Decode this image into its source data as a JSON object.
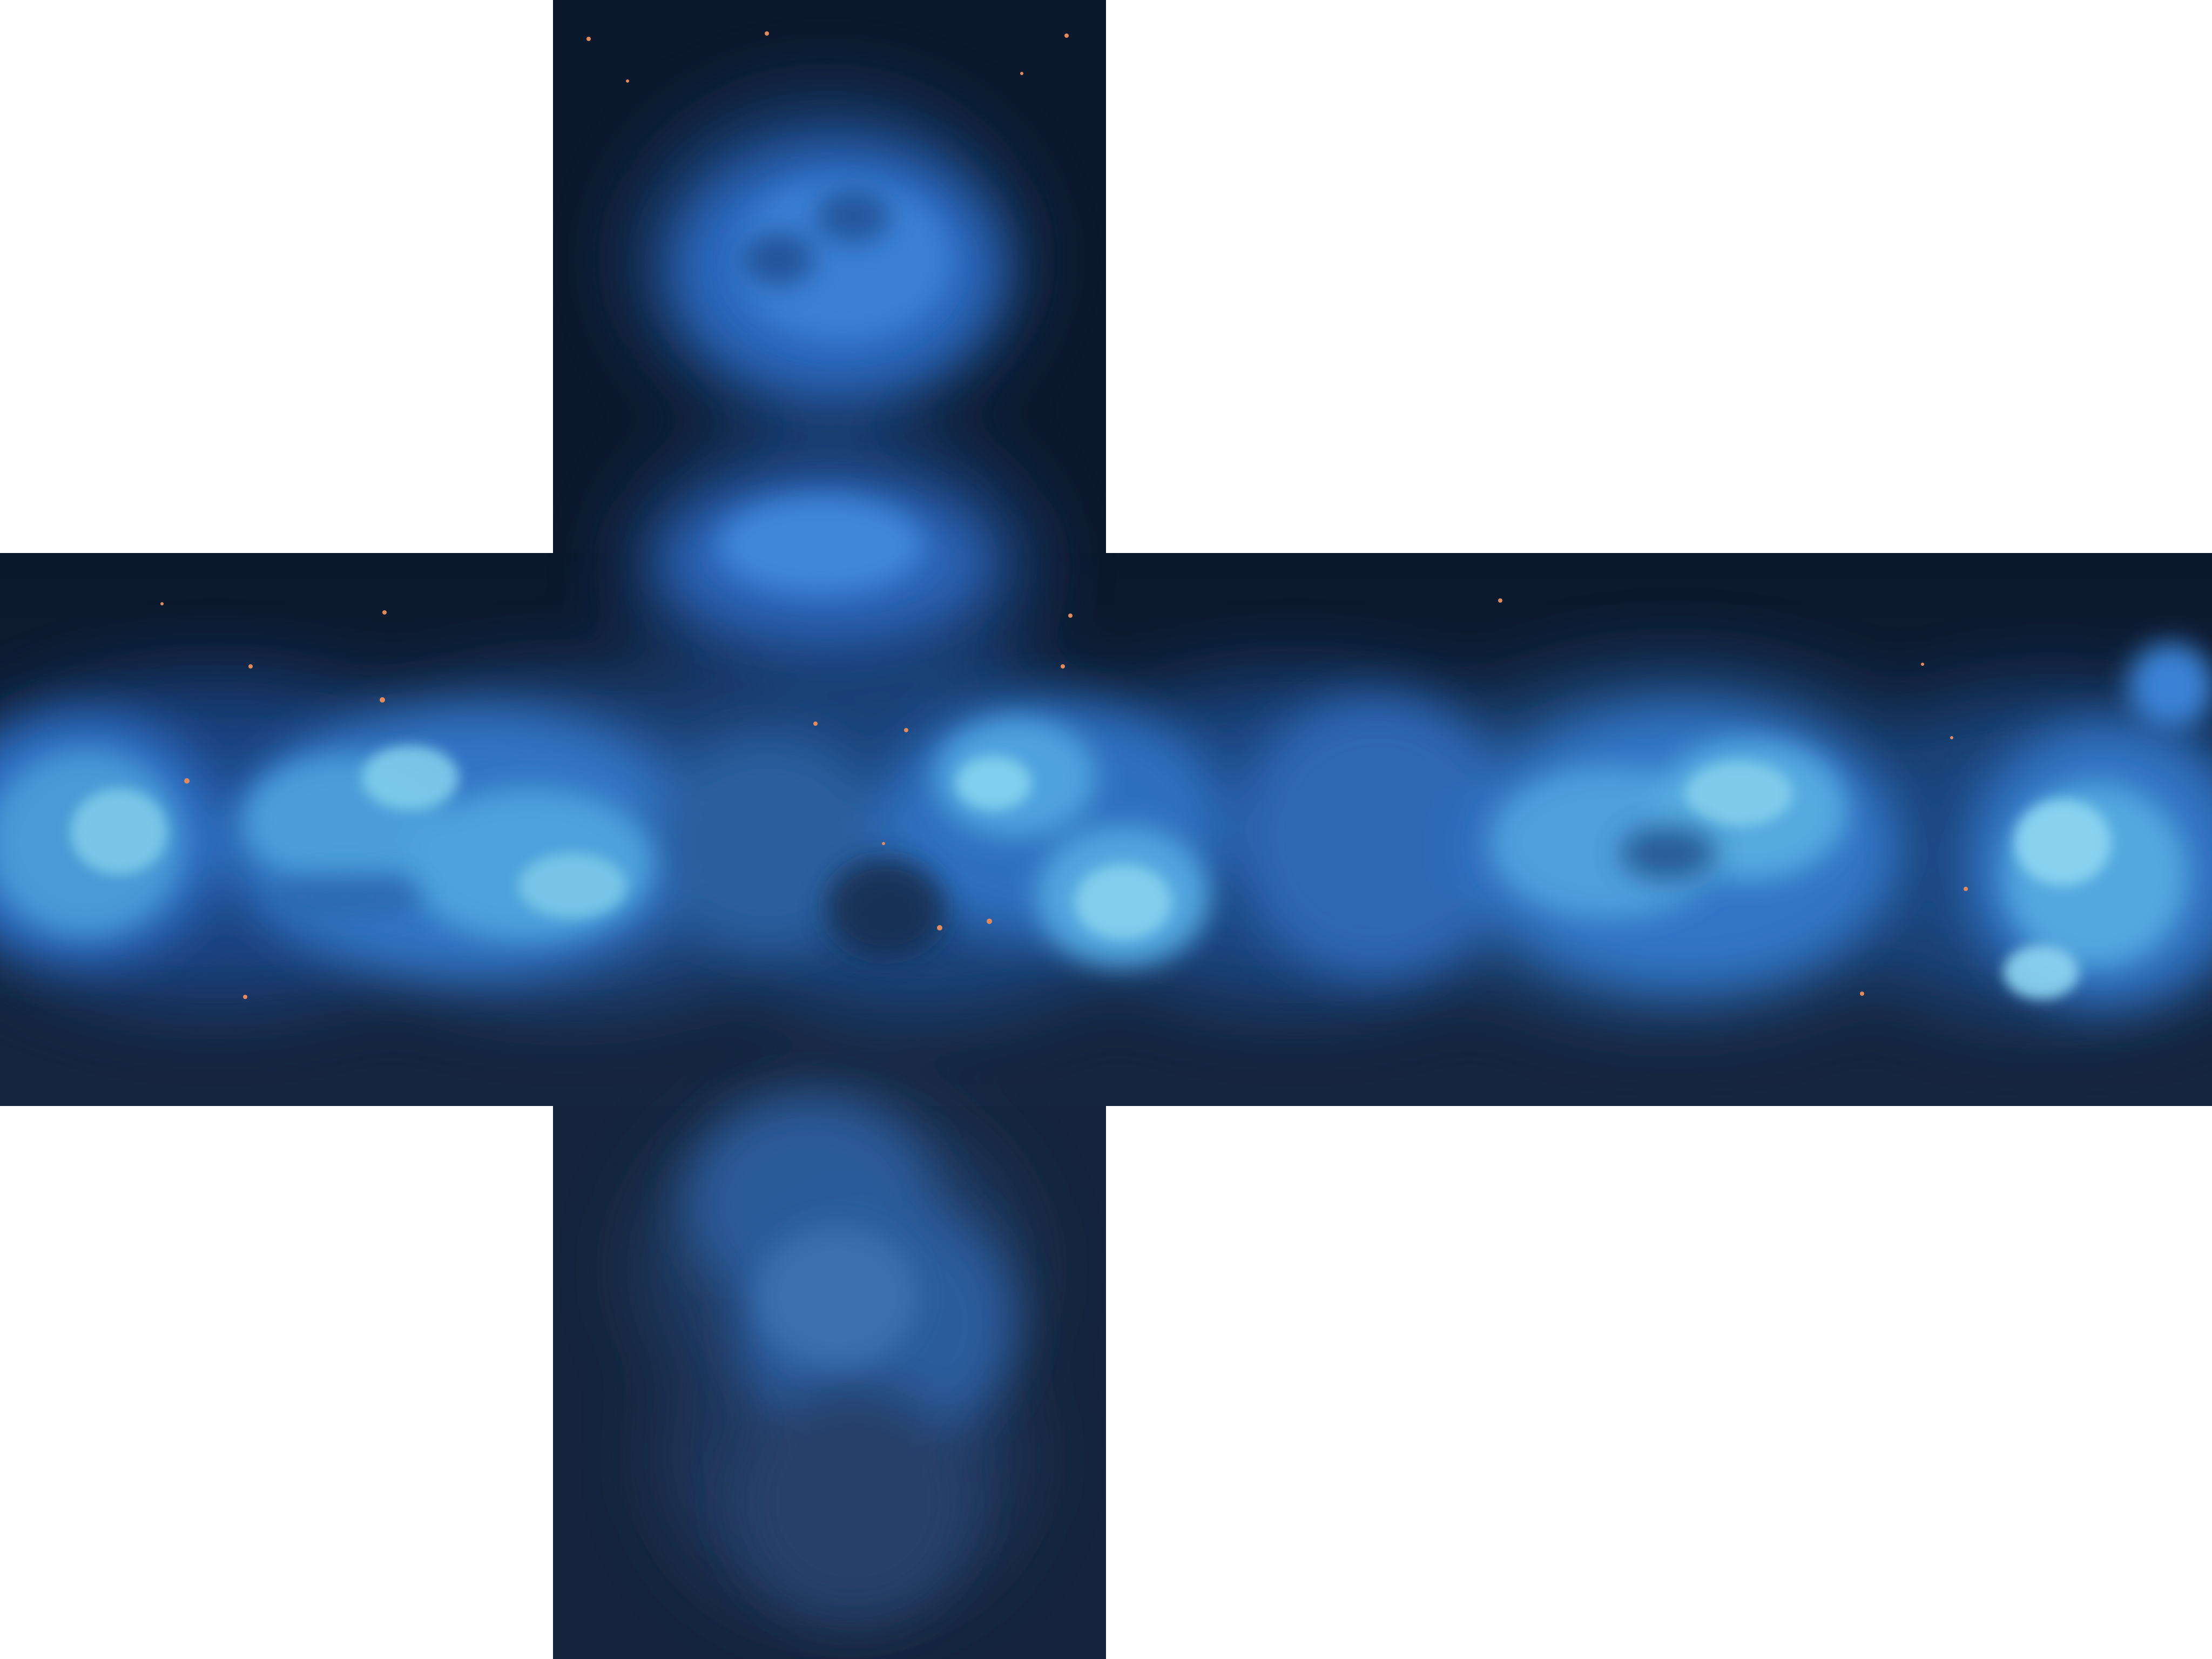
{
  "skybox": {
    "layout": "horizontal-cross",
    "faces": [
      "top",
      "left",
      "front",
      "right",
      "back",
      "bottom"
    ],
    "colors": {
      "background": "#ffffff",
      "space_top": "#0c1a2f",
      "space_bottom": "#16253d",
      "nebula_deep": "#1f4f97",
      "nebula_mid": "#2f6fcb",
      "nebula_bright": "#5fb0e6",
      "nebula_glow": "#8fd6f2",
      "star": "#e38a5e"
    }
  }
}
